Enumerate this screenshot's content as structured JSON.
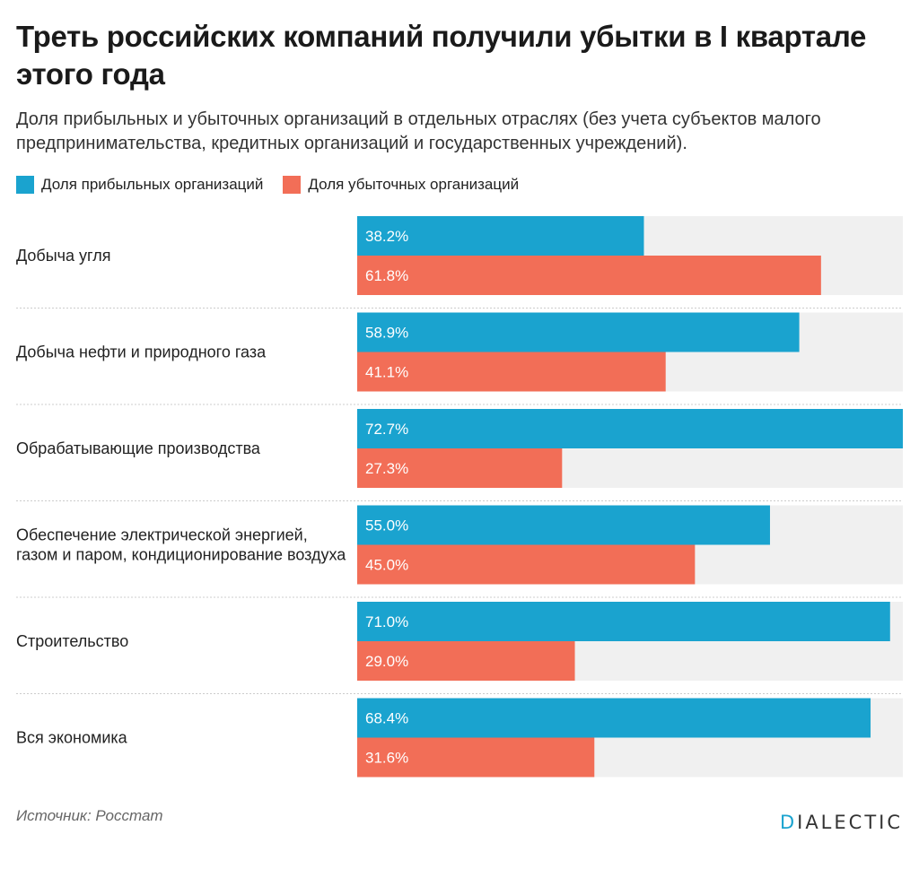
{
  "title": "Треть российских компаний получили убытки в I квартале этого года",
  "subtitle": "Доля прибыльных и убыточных организаций в отдельных отраслях (без учета субъектов малого предпринимательства, кредитных организаций и государственных учреждений).",
  "source": "Источник: Росстат",
  "logo": {
    "first": "D",
    "rest": "IALECTIC"
  },
  "colors": {
    "profitable": "#1aa3cf",
    "loss": "#f26e57",
    "track": "#f0f0f0",
    "separator": "#cccccc",
    "label": "#ffffff"
  },
  "chart_data": {
    "type": "bar",
    "orientation": "horizontal",
    "categories": [
      "Добыча угля",
      "Добыча нефти и природного газа",
      "Обрабатывающие производства",
      "Обеспечение электрической энергией, газом и паром, кондиционирование воздуха",
      "Строительство",
      "Вся экономика"
    ],
    "series": [
      {
        "name": "Доля прибыльных организаций",
        "values": [
          38.2,
          58.9,
          72.7,
          55.0,
          71.0,
          68.4
        ],
        "labels": [
          "38.2%",
          "58.9%",
          "72.7%",
          "55.0%",
          "71.0%",
          "68.4%"
        ]
      },
      {
        "name": "Доля убыточных организаций",
        "values": [
          61.8,
          41.1,
          27.3,
          45.0,
          29.0,
          31.6
        ],
        "labels": [
          "61.8%",
          "41.1%",
          "27.3%",
          "45.0%",
          "29.0%",
          "31.6%"
        ]
      }
    ],
    "xlim": [
      0,
      72.7
    ],
    "legend_position": "top-left",
    "grid": false
  }
}
